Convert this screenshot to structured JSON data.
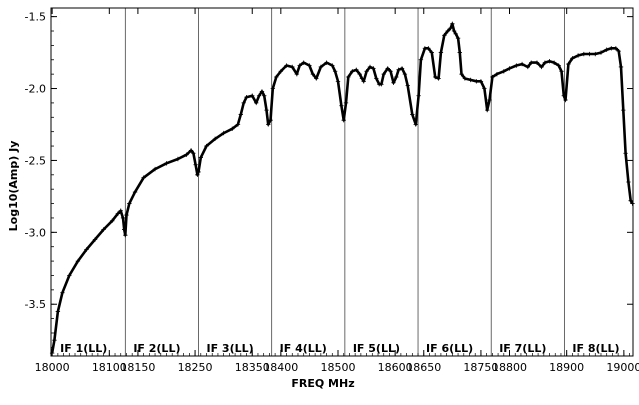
{
  "chart_data": {
    "type": "line",
    "title": "",
    "xlabel": "FREQ MHz",
    "ylabel": "Log10(Amp) Jy",
    "xlim": [
      17998,
      19016
    ],
    "ylim": [
      -3.86,
      -1.44
    ],
    "y_ticks": [
      -1.5,
      -2.0,
      -2.5,
      -3.0,
      -3.5
    ],
    "y_tick_labels": [
      "-1.5",
      "-2.0",
      "-2.5",
      "-3.0",
      "-3.5"
    ],
    "panels": [
      {
        "label": "IF 1(LL)",
        "start": 18000,
        "end": 18128,
        "x_tick_labels": [
          {
            "v": 18000,
            "t": "18000"
          },
          {
            "v": 18100,
            "t": "18100"
          }
        ]
      },
      {
        "label": "IF 2(LL)",
        "start": 18128,
        "end": 18256,
        "x_tick_labels": [
          {
            "v": 18150,
            "t": "18150"
          },
          {
            "v": 18250,
            "t": "18250"
          }
        ]
      },
      {
        "label": "IF 3(LL)",
        "start": 18256,
        "end": 18384,
        "x_tick_labels": [
          {
            "v": 18350,
            "t": "18350"
          }
        ]
      },
      {
        "label": "IF 4(LL)",
        "start": 18384,
        "end": 18512,
        "x_tick_labels": [
          {
            "v": 18400,
            "t": "18400"
          },
          {
            "v": 18500,
            "t": "18500"
          }
        ]
      },
      {
        "label": "IF 5(LL)",
        "start": 18512,
        "end": 18640,
        "x_tick_labels": [
          {
            "v": 18600,
            "t": "18600"
          }
        ]
      },
      {
        "label": "IF 6(LL)",
        "start": 18640,
        "end": 18768,
        "x_tick_labels": [
          {
            "v": 18650,
            "t": "18650"
          },
          {
            "v": 18750,
            "t": "18750"
          }
        ]
      },
      {
        "label": "IF 7(LL)",
        "start": 18768,
        "end": 18896,
        "x_tick_labels": [
          {
            "v": 18800,
            "t": "18800"
          }
        ]
      },
      {
        "label": "IF 8(LL)",
        "start": 18896,
        "end": 19016,
        "x_tick_labels": [
          {
            "v": 18900,
            "t": "18900"
          },
          {
            "v": 19000,
            "t": "19000"
          }
        ]
      }
    ],
    "series": [
      {
        "color": "#000000",
        "marker": "plus",
        "points": [
          [
            18000,
            -3.84
          ],
          [
            18004,
            -3.75
          ],
          [
            18010,
            -3.55
          ],
          [
            18018,
            -3.42
          ],
          [
            18030,
            -3.3
          ],
          [
            18045,
            -3.2
          ],
          [
            18060,
            -3.12
          ],
          [
            18075,
            -3.05
          ],
          [
            18090,
            -2.98
          ],
          [
            18105,
            -2.92
          ],
          [
            18115,
            -2.87
          ],
          [
            18120,
            -2.85
          ],
          [
            18124,
            -2.9
          ],
          [
            18126,
            -2.98
          ],
          [
            18128,
            -3.02
          ],
          [
            18130,
            -2.88
          ],
          [
            18135,
            -2.8
          ],
          [
            18145,
            -2.72
          ],
          [
            18160,
            -2.62
          ],
          [
            18180,
            -2.56
          ],
          [
            18200,
            -2.52
          ],
          [
            18220,
            -2.49
          ],
          [
            18235,
            -2.46
          ],
          [
            18243,
            -2.43
          ],
          [
            18247,
            -2.45
          ],
          [
            18251,
            -2.53
          ],
          [
            18254,
            -2.6
          ],
          [
            18256,
            -2.58
          ],
          [
            18260,
            -2.48
          ],
          [
            18270,
            -2.4
          ],
          [
            18285,
            -2.35
          ],
          [
            18300,
            -2.31
          ],
          [
            18315,
            -2.28
          ],
          [
            18325,
            -2.25
          ],
          [
            18330,
            -2.18
          ],
          [
            18335,
            -2.1
          ],
          [
            18340,
            -2.06
          ],
          [
            18350,
            -2.05
          ],
          [
            18357,
            -2.1
          ],
          [
            18362,
            -2.05
          ],
          [
            18367,
            -2.02
          ],
          [
            18371,
            -2.05
          ],
          [
            18375,
            -2.15
          ],
          [
            18378,
            -2.25
          ],
          [
            18382,
            -2.22
          ],
          [
            18386,
            -2.0
          ],
          [
            18392,
            -1.92
          ],
          [
            18400,
            -1.88
          ],
          [
            18410,
            -1.84
          ],
          [
            18420,
            -1.85
          ],
          [
            18428,
            -1.9
          ],
          [
            18433,
            -1.84
          ],
          [
            18440,
            -1.82
          ],
          [
            18450,
            -1.84
          ],
          [
            18456,
            -1.9
          ],
          [
            18462,
            -1.93
          ],
          [
            18470,
            -1.85
          ],
          [
            18480,
            -1.82
          ],
          [
            18490,
            -1.84
          ],
          [
            18495,
            -1.88
          ],
          [
            18500,
            -1.95
          ],
          [
            18506,
            -2.12
          ],
          [
            18510,
            -2.22
          ],
          [
            18514,
            -2.1
          ],
          [
            18518,
            -1.92
          ],
          [
            18525,
            -1.88
          ],
          [
            18532,
            -1.87
          ],
          [
            18538,
            -1.9
          ],
          [
            18542,
            -1.93
          ],
          [
            18545,
            -1.95
          ],
          [
            18550,
            -1.88
          ],
          [
            18556,
            -1.85
          ],
          [
            18562,
            -1.86
          ],
          [
            18567,
            -1.93
          ],
          [
            18572,
            -1.97
          ],
          [
            18576,
            -1.97
          ],
          [
            18580,
            -1.9
          ],
          [
            18587,
            -1.86
          ],
          [
            18592,
            -1.88
          ],
          [
            18597,
            -1.96
          ],
          [
            18602,
            -1.92
          ],
          [
            18606,
            -1.87
          ],
          [
            18612,
            -1.86
          ],
          [
            18617,
            -1.9
          ],
          [
            18622,
            -1.98
          ],
          [
            18630,
            -2.18
          ],
          [
            18636,
            -2.25
          ],
          [
            18641,
            -2.05
          ],
          [
            18645,
            -1.8
          ],
          [
            18652,
            -1.72
          ],
          [
            18658,
            -1.72
          ],
          [
            18664,
            -1.75
          ],
          [
            18670,
            -1.92
          ],
          [
            18676,
            -1.93
          ],
          [
            18680,
            -1.75
          ],
          [
            18686,
            -1.63
          ],
          [
            18692,
            -1.6
          ],
          [
            18697,
            -1.58
          ],
          [
            18700,
            -1.55
          ],
          [
            18703,
            -1.6
          ],
          [
            18706,
            -1.62
          ],
          [
            18710,
            -1.65
          ],
          [
            18713,
            -1.75
          ],
          [
            18716,
            -1.9
          ],
          [
            18722,
            -1.93
          ],
          [
            18732,
            -1.94
          ],
          [
            18742,
            -1.95
          ],
          [
            18750,
            -1.95
          ],
          [
            18756,
            -2.0
          ],
          [
            18761,
            -2.15
          ],
          [
            18765,
            -2.08
          ],
          [
            18770,
            -1.92
          ],
          [
            18778,
            -1.9
          ],
          [
            18790,
            -1.88
          ],
          [
            18800,
            -1.86
          ],
          [
            18812,
            -1.84
          ],
          [
            18822,
            -1.83
          ],
          [
            18832,
            -1.85
          ],
          [
            18838,
            -1.82
          ],
          [
            18848,
            -1.82
          ],
          [
            18856,
            -1.85
          ],
          [
            18862,
            -1.82
          ],
          [
            18870,
            -1.81
          ],
          [
            18878,
            -1.82
          ],
          [
            18886,
            -1.84
          ],
          [
            18891,
            -1.88
          ],
          [
            18895,
            -2.05
          ],
          [
            18898,
            -2.08
          ],
          [
            18903,
            -1.83
          ],
          [
            18910,
            -1.79
          ],
          [
            18920,
            -1.77
          ],
          [
            18930,
            -1.76
          ],
          [
            18940,
            -1.76
          ],
          [
            18950,
            -1.76
          ],
          [
            18960,
            -1.75
          ],
          [
            18970,
            -1.73
          ],
          [
            18978,
            -1.72
          ],
          [
            18986,
            -1.72
          ],
          [
            18991,
            -1.74
          ],
          [
            18995,
            -1.85
          ],
          [
            18999,
            -2.15
          ],
          [
            19003,
            -2.45
          ],
          [
            19008,
            -2.65
          ],
          [
            19012,
            -2.78
          ],
          [
            19015,
            -2.8
          ]
        ]
      }
    ]
  }
}
